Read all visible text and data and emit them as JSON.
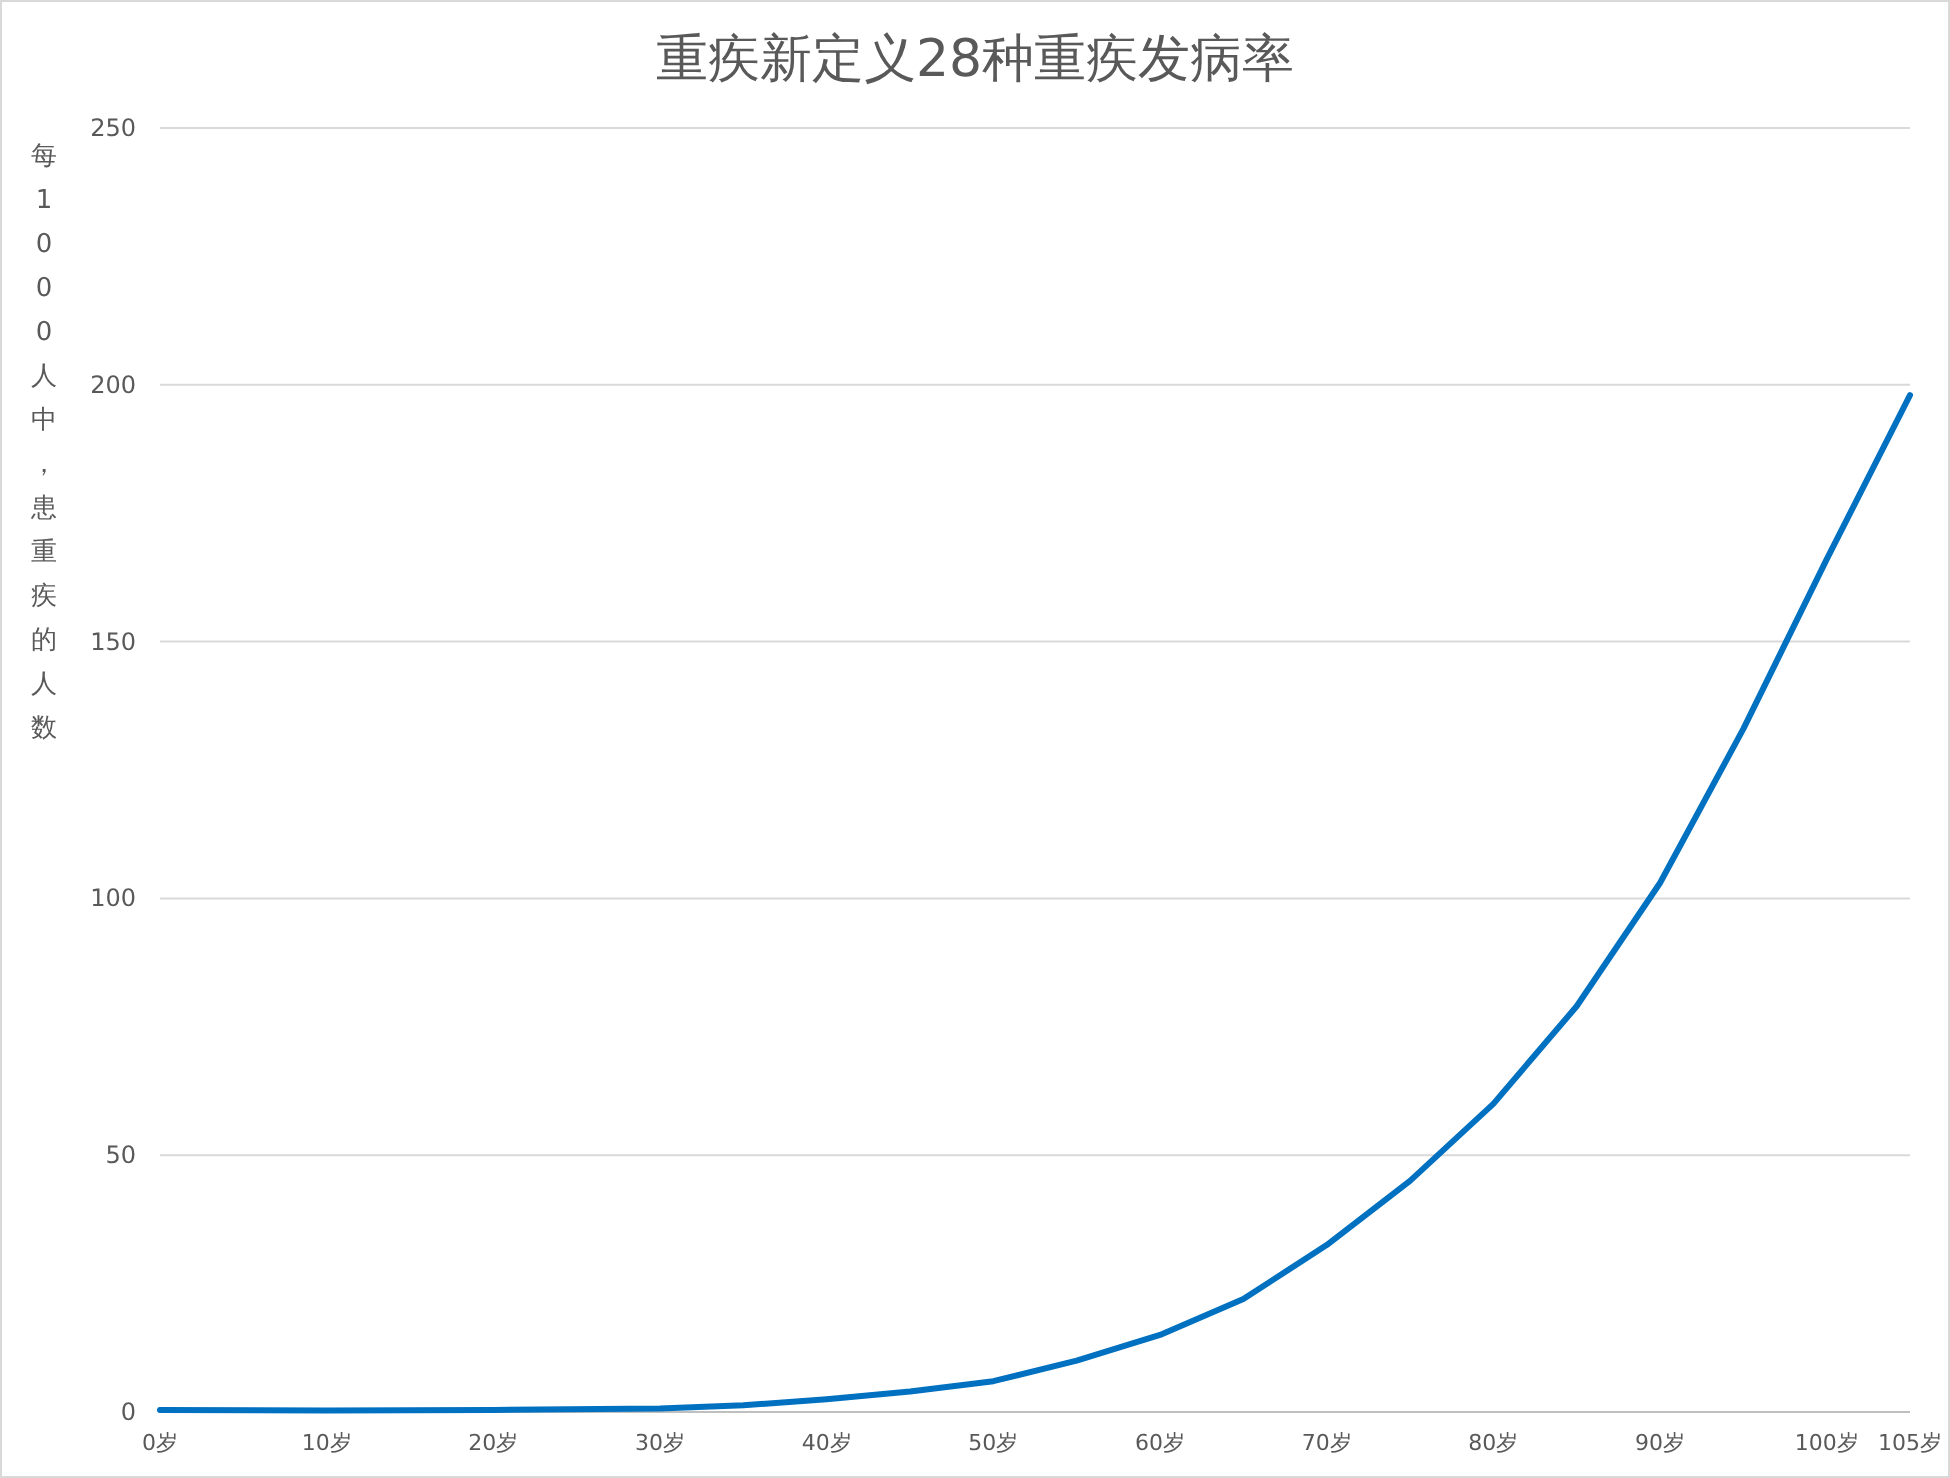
{
  "chart_data": {
    "type": "line",
    "title": "重疾新定义28种重疾发病率",
    "ylabel": "每1000人中，患重疾的人数",
    "x": [
      0,
      10,
      20,
      30,
      35,
      40,
      45,
      50,
      55,
      60,
      65,
      70,
      75,
      80,
      85,
      90,
      95,
      100,
      105
    ],
    "series": [
      {
        "color": "#0070c0",
        "values": [
          0.4,
          0.3,
          0.4,
          0.7,
          1.3,
          2.5,
          4,
          6,
          10,
          15,
          22,
          32.5,
          45,
          60,
          79,
          103,
          133,
          166,
          198
        ]
      }
    ],
    "xlim": [
      0,
      105
    ],
    "xticks": [
      {
        "value": 0,
        "label": "0岁"
      },
      {
        "value": 10,
        "label": "10岁"
      },
      {
        "value": 20,
        "label": "20岁"
      },
      {
        "value": 30,
        "label": "30岁"
      },
      {
        "value": 40,
        "label": "40岁"
      },
      {
        "value": 50,
        "label": "50岁"
      },
      {
        "value": 60,
        "label": "60岁"
      },
      {
        "value": 70,
        "label": "70岁"
      },
      {
        "value": 80,
        "label": "80岁"
      },
      {
        "value": 90,
        "label": "90岁"
      },
      {
        "value": 100,
        "label": "100岁"
      },
      {
        "value": 105,
        "label": "105岁"
      }
    ],
    "ylim": [
      0,
      250
    ],
    "yticks": [
      0,
      50,
      100,
      150,
      200,
      250
    ],
    "grid": "y",
    "marker": "none",
    "line_style": "solid"
  }
}
